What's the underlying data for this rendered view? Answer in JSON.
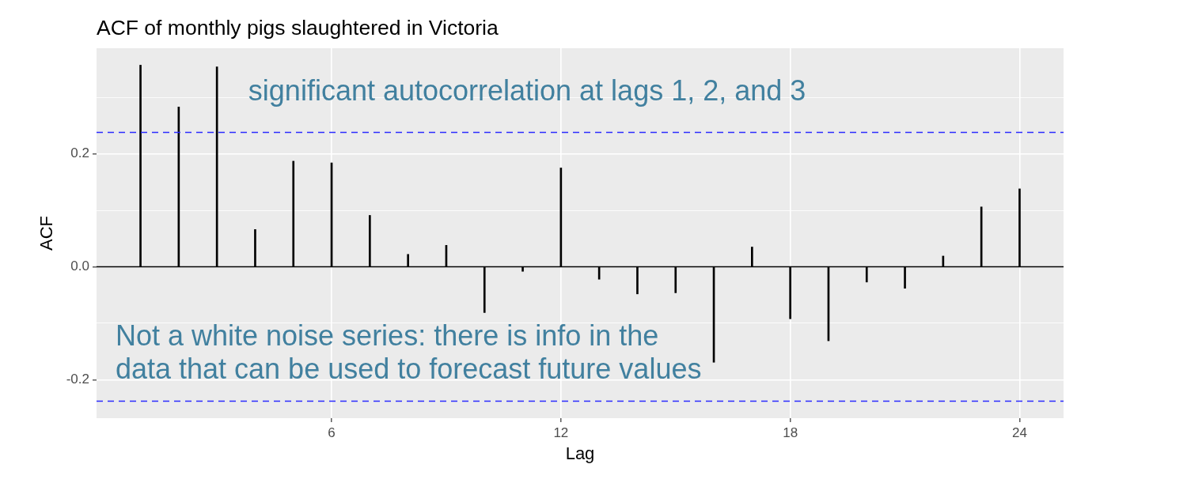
{
  "chart_data": {
    "type": "bar",
    "title": "ACF of monthly pigs slaughtered in Victoria",
    "xlabel": "Lag",
    "ylabel": "ACF",
    "x": [
      1,
      2,
      3,
      4,
      5,
      6,
      7,
      8,
      9,
      10,
      11,
      12,
      13,
      14,
      15,
      16,
      17,
      18,
      19,
      20,
      21,
      22,
      23,
      24
    ],
    "series": [
      {
        "color": "#000000",
        "values": [
          0.357,
          0.283,
          0.354,
          0.066,
          0.187,
          0.184,
          0.091,
          0.022,
          0.038,
          -0.081,
          -0.008,
          0.175,
          -0.022,
          -0.048,
          -0.046,
          -0.169,
          0.035,
          -0.092,
          -0.131,
          -0.027,
          -0.038,
          0.019,
          0.106,
          0.138
        ]
      }
    ],
    "xlim": [
      -0.15,
      25.15
    ],
    "xticks": [
      6,
      12,
      18,
      24
    ],
    "ylim": [
      -0.268,
      0.387
    ],
    "yticks": [
      -0.2,
      {
        "value": -0.1,
        "label": null
      },
      {
        "value": 0,
        "label": "0.0"
      },
      {
        "value": 0.1,
        "label": null
      },
      0.2,
      {
        "value": 0.3,
        "label": null
      }
    ],
    "grid": true,
    "ref_lines": [
      {
        "axis": "y",
        "value": 0,
        "color": "#000000",
        "line_style": "solid"
      },
      {
        "axis": "y",
        "value": 0.238,
        "color": "#2b2bff",
        "line_style": "dashed"
      },
      {
        "axis": "y",
        "value": -0.238,
        "color": "#2b2bff",
        "line_style": "dashed"
      }
    ],
    "annotations": [
      "significant autocorrelation at lags 1, 2, and 3",
      "Not a white noise series: there is info in the data that can be used to forecast future values"
    ]
  }
}
